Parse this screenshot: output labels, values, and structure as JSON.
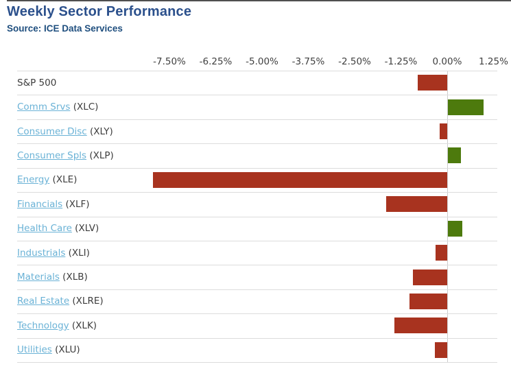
{
  "header": {
    "title": "Weekly Sector Performance",
    "subtitle": "Source: ICE Data Services"
  },
  "chart_data": {
    "type": "bar",
    "orientation": "horizontal",
    "title": "Weekly Sector Performance",
    "source": "Source: ICE Data Services",
    "unit": "%",
    "axis": {
      "position": "top",
      "tick_labels": [
        "-7.50%",
        "-6.25%",
        "-5.00%",
        "-3.75%",
        "-2.50%",
        "-1.25%",
        "0.00%",
        "1.25%"
      ],
      "tick_values": [
        -7.5,
        -6.25,
        -5.0,
        -3.75,
        -2.5,
        -1.25,
        0.0,
        1.25
      ],
      "range": [
        -8.2,
        1.45
      ],
      "grid": "zero-line-and-row-separators-only"
    },
    "rows": [
      {
        "label": "S&P 500",
        "ticker": "",
        "is_link": false,
        "value": -0.8
      },
      {
        "label": "Comm Srvs",
        "ticker": "(XLC)",
        "is_link": true,
        "value": 0.96
      },
      {
        "label": "Consumer Disc",
        "ticker": "(XLY)",
        "is_link": true,
        "value": -0.2
      },
      {
        "label": "Consumer Spls",
        "ticker": "(XLP)",
        "is_link": true,
        "value": 0.35
      },
      {
        "label": "Energy",
        "ticker": "(XLE)",
        "is_link": true,
        "value": -7.94
      },
      {
        "label": "Financials",
        "ticker": "(XLF)",
        "is_link": true,
        "value": -1.65
      },
      {
        "label": "Health Care",
        "ticker": "(XLV)",
        "is_link": true,
        "value": 0.39
      },
      {
        "label": "Industrials",
        "ticker": "(XLI)",
        "is_link": true,
        "value": -0.31
      },
      {
        "label": "Materials",
        "ticker": "(XLB)",
        "is_link": true,
        "value": -0.93
      },
      {
        "label": "Real Estate",
        "ticker": "(XLRE)",
        "is_link": true,
        "value": -1.02
      },
      {
        "label": "Technology",
        "ticker": "(XLK)",
        "is_link": true,
        "value": -1.43
      },
      {
        "label": "Utilities",
        "ticker": "(XLU)",
        "is_link": true,
        "value": -0.33
      }
    ],
    "colors": {
      "positive": "#4d7a0d",
      "negative": "#a8331f",
      "link": "#6ab2d6",
      "text": "#3c3c3c",
      "grid": "#dcdcdc",
      "zero_line": "#cccccc",
      "title": "#2b508c",
      "subtitle": "#1e4e7e"
    }
  }
}
